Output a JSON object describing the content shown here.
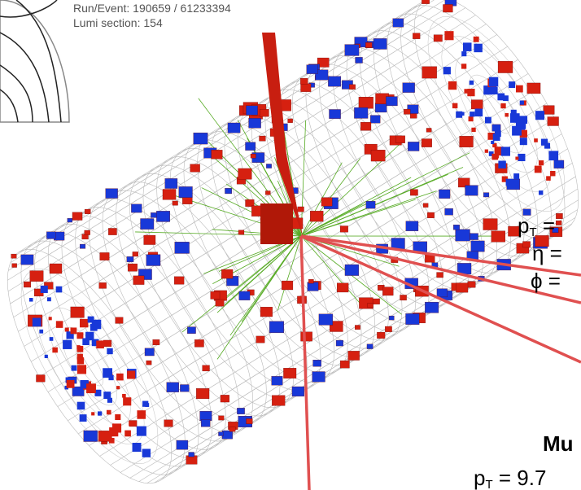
{
  "header": {
    "run_event": "Run/Event: 190659 / 61233394",
    "lumi_section": "Lumi section: 154"
  },
  "muon_1": {
    "pt": {
      "symbol": "p",
      "subscript": "T",
      "text": " ="
    },
    "eta": "η =",
    "phi": "ϕ ="
  },
  "muon_2": {
    "title": "Mu",
    "pt": {
      "symbol": "p",
      "subscript": "T",
      "text": " = 9.7"
    }
  }
}
